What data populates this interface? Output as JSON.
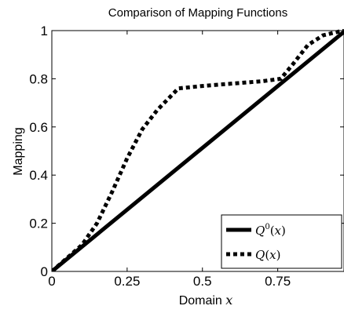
{
  "chart_data": {
    "type": "line",
    "title": "Comparison of Mapping Functions",
    "xlabel_main": "Domain ",
    "xlabel_var": "x",
    "ylabel": "Mapping",
    "xlim": [
      0,
      0.97
    ],
    "ylim": [
      0,
      1
    ],
    "x_ticks": [
      0,
      0.25,
      0.5,
      0.75
    ],
    "x_tick_labels": [
      "0",
      "0.25",
      "0.5",
      "0.75"
    ],
    "y_ticks": [
      0,
      0.2,
      0.4,
      0.6,
      0.8,
      1
    ],
    "y_tick_labels": [
      "0",
      "0.2",
      "0.4",
      "0.6",
      "0.8",
      "1"
    ],
    "grid": false,
    "legend_position": "bottom-right",
    "series": [
      {
        "name": "Q^0(x)",
        "legend_main": "Q",
        "legend_sup": "0",
        "legend_tail": "(x)",
        "style": "solid",
        "color": "#000000",
        "x": [
          0,
          0.97
        ],
        "y": [
          0,
          0.995
        ]
      },
      {
        "name": "Q(x)",
        "legend_main": "Q",
        "legend_sup": "",
        "legend_tail": "(x)",
        "style": "dotted",
        "color": "#000000",
        "x": [
          0,
          0.1,
          0.15,
          0.2,
          0.25,
          0.3,
          0.35,
          0.42,
          0.5,
          0.6,
          0.7,
          0.76,
          0.8,
          0.85,
          0.9,
          0.95,
          0.97
        ],
        "y": [
          0,
          0.11,
          0.2,
          0.33,
          0.47,
          0.59,
          0.67,
          0.76,
          0.77,
          0.78,
          0.79,
          0.8,
          0.86,
          0.94,
          0.98,
          0.995,
          1.0
        ]
      }
    ]
  }
}
